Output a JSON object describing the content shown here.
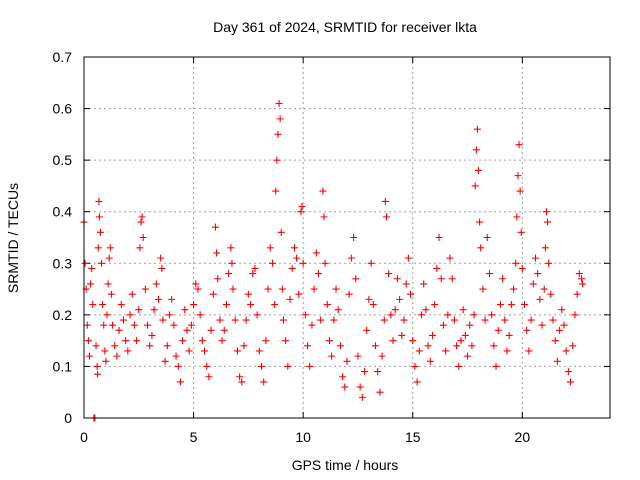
{
  "chart_data": {
    "type": "scatter",
    "title": "Day 361 of 2024, SRMTID for receiver lkta",
    "xlabel": "GPS time / hours",
    "ylabel": "SRMTID / TECUs",
    "xlim": [
      0,
      24
    ],
    "ylim": [
      0,
      0.7
    ],
    "x_ticks": [
      0,
      5,
      10,
      15,
      20
    ],
    "y_ticks": [
      0,
      0.1,
      0.2,
      0.3,
      0.4,
      0.5,
      0.6,
      0.7
    ],
    "x_tick_labels": [
      "0",
      "5",
      "10",
      "15",
      "20"
    ],
    "y_tick_labels": [
      "0",
      "0.1",
      "0.2",
      "0.3",
      "0.4",
      "0.5",
      "0.6",
      "0.7"
    ],
    "grid": true,
    "marker": "plus",
    "color": "#ff0000",
    "series": [
      {
        "name": "SRMTID",
        "points": [
          [
            0.0,
            0.38
          ],
          [
            0.05,
            0.3
          ],
          [
            0.1,
            0.25
          ],
          [
            0.15,
            0.18
          ],
          [
            0.2,
            0.15
          ],
          [
            0.25,
            0.12
          ],
          [
            0.3,
            0.26
          ],
          [
            0.35,
            0.29
          ],
          [
            0.4,
            0.22
          ],
          [
            0.45,
            0.0
          ],
          [
            0.5,
            0.0
          ],
          [
            0.55,
            0.14
          ],
          [
            0.6,
            0.1
          ],
          [
            0.62,
            0.085
          ],
          [
            0.65,
            0.33
          ],
          [
            0.68,
            0.42
          ],
          [
            0.7,
            0.39
          ],
          [
            0.75,
            0.36
          ],
          [
            0.8,
            0.3
          ],
          [
            0.85,
            0.22
          ],
          [
            0.9,
            0.18
          ],
          [
            0.95,
            0.13
          ],
          [
            1.0,
            0.11
          ],
          [
            1.05,
            0.2
          ],
          [
            1.1,
            0.26
          ],
          [
            1.15,
            0.31
          ],
          [
            1.2,
            0.33
          ],
          [
            1.25,
            0.24
          ],
          [
            1.3,
            0.18
          ],
          [
            1.4,
            0.14
          ],
          [
            1.5,
            0.12
          ],
          [
            1.6,
            0.17
          ],
          [
            1.7,
            0.22
          ],
          [
            1.8,
            0.19
          ],
          [
            1.9,
            0.15
          ],
          [
            2.0,
            0.13
          ],
          [
            2.1,
            0.2
          ],
          [
            2.2,
            0.24
          ],
          [
            2.3,
            0.18
          ],
          [
            2.4,
            0.15
          ],
          [
            2.5,
            0.21
          ],
          [
            2.55,
            0.33
          ],
          [
            2.6,
            0.38
          ],
          [
            2.65,
            0.39
          ],
          [
            2.7,
            0.35
          ],
          [
            2.8,
            0.25
          ],
          [
            2.9,
            0.18
          ],
          [
            3.0,
            0.14
          ],
          [
            3.1,
            0.16
          ],
          [
            3.2,
            0.21
          ],
          [
            3.3,
            0.26
          ],
          [
            3.4,
            0.23
          ],
          [
            3.5,
            0.31
          ],
          [
            3.55,
            0.29
          ],
          [
            3.6,
            0.19
          ],
          [
            3.7,
            0.11
          ],
          [
            3.8,
            0.14
          ],
          [
            3.9,
            0.2
          ],
          [
            4.0,
            0.23
          ],
          [
            4.1,
            0.18
          ],
          [
            4.2,
            0.12
          ],
          [
            4.3,
            0.1
          ],
          [
            4.4,
            0.07
          ],
          [
            4.5,
            0.15
          ],
          [
            4.6,
            0.21
          ],
          [
            4.7,
            0.17
          ],
          [
            4.8,
            0.13
          ],
          [
            4.9,
            0.18
          ],
          [
            5.0,
            0.22
          ],
          [
            5.1,
            0.26
          ],
          [
            5.2,
            0.25
          ],
          [
            5.3,
            0.2
          ],
          [
            5.4,
            0.15
          ],
          [
            5.5,
            0.13
          ],
          [
            5.6,
            0.1
          ],
          [
            5.7,
            0.08
          ],
          [
            5.8,
            0.17
          ],
          [
            5.9,
            0.24
          ],
          [
            6.0,
            0.37
          ],
          [
            6.05,
            0.32
          ],
          [
            6.1,
            0.27
          ],
          [
            6.2,
            0.19
          ],
          [
            6.3,
            0.15
          ],
          [
            6.4,
            0.17
          ],
          [
            6.5,
            0.22
          ],
          [
            6.6,
            0.28
          ],
          [
            6.7,
            0.33
          ],
          [
            6.75,
            0.3
          ],
          [
            6.8,
            0.25
          ],
          [
            6.9,
            0.19
          ],
          [
            7.0,
            0.13
          ],
          [
            7.1,
            0.08
          ],
          [
            7.2,
            0.07
          ],
          [
            7.3,
            0.14
          ],
          [
            7.4,
            0.19
          ],
          [
            7.5,
            0.24
          ],
          [
            7.6,
            0.22
          ],
          [
            7.7,
            0.28
          ],
          [
            7.8,
            0.29
          ],
          [
            7.9,
            0.2
          ],
          [
            8.0,
            0.13
          ],
          [
            8.1,
            0.1
          ],
          [
            8.2,
            0.07
          ],
          [
            8.3,
            0.15
          ],
          [
            8.4,
            0.25
          ],
          [
            8.5,
            0.33
          ],
          [
            8.6,
            0.3
          ],
          [
            8.7,
            0.22
          ],
          [
            8.75,
            0.44
          ],
          [
            8.8,
            0.5
          ],
          [
            8.85,
            0.55
          ],
          [
            8.9,
            0.61
          ],
          [
            8.95,
            0.58
          ],
          [
            9.0,
            0.36
          ],
          [
            9.05,
            0.25
          ],
          [
            9.1,
            0.19
          ],
          [
            9.2,
            0.15
          ],
          [
            9.3,
            0.1
          ],
          [
            9.4,
            0.23
          ],
          [
            9.5,
            0.29
          ],
          [
            9.6,
            0.33
          ],
          [
            9.7,
            0.31
          ],
          [
            9.8,
            0.24
          ],
          [
            9.9,
            0.4
          ],
          [
            9.95,
            0.41
          ],
          [
            10.0,
            0.3
          ],
          [
            10.1,
            0.2
          ],
          [
            10.2,
            0.14
          ],
          [
            10.3,
            0.1
          ],
          [
            10.4,
            0.18
          ],
          [
            10.5,
            0.25
          ],
          [
            10.6,
            0.32
          ],
          [
            10.7,
            0.28
          ],
          [
            10.8,
            0.19
          ],
          [
            10.9,
            0.44
          ],
          [
            10.95,
            0.39
          ],
          [
            11.0,
            0.3
          ],
          [
            11.1,
            0.22
          ],
          [
            11.2,
            0.15
          ],
          [
            11.3,
            0.12
          ],
          [
            11.4,
            0.19
          ],
          [
            11.5,
            0.25
          ],
          [
            11.6,
            0.21
          ],
          [
            11.7,
            0.14
          ],
          [
            11.8,
            0.08
          ],
          [
            11.9,
            0.06
          ],
          [
            12.0,
            0.11
          ],
          [
            12.1,
            0.24
          ],
          [
            12.2,
            0.31
          ],
          [
            12.3,
            0.35
          ],
          [
            12.4,
            0.27
          ],
          [
            12.5,
            0.12
          ],
          [
            12.6,
            0.06
          ],
          [
            12.7,
            0.04
          ],
          [
            12.8,
            0.09
          ],
          [
            12.9,
            0.17
          ],
          [
            13.0,
            0.23
          ],
          [
            13.1,
            0.3
          ],
          [
            13.2,
            0.22
          ],
          [
            13.3,
            0.14
          ],
          [
            13.4,
            0.09
          ],
          [
            13.5,
            0.05
          ],
          [
            13.6,
            0.12
          ],
          [
            13.7,
            0.19
          ],
          [
            13.75,
            0.42
          ],
          [
            13.8,
            0.39
          ],
          [
            13.9,
            0.28
          ],
          [
            14.0,
            0.2
          ],
          [
            14.1,
            0.15
          ],
          [
            14.2,
            0.21
          ],
          [
            14.3,
            0.27
          ],
          [
            14.4,
            0.23
          ],
          [
            14.5,
            0.16
          ],
          [
            14.6,
            0.19
          ],
          [
            14.7,
            0.26
          ],
          [
            14.8,
            0.31
          ],
          [
            14.9,
            0.24
          ],
          [
            15.0,
            0.15
          ],
          [
            15.1,
            0.1
          ],
          [
            15.2,
            0.07
          ],
          [
            15.3,
            0.13
          ],
          [
            15.4,
            0.2
          ],
          [
            15.5,
            0.26
          ],
          [
            15.6,
            0.21
          ],
          [
            15.7,
            0.14
          ],
          [
            15.8,
            0.11
          ],
          [
            15.9,
            0.16
          ],
          [
            16.0,
            0.22
          ],
          [
            16.1,
            0.29
          ],
          [
            16.2,
            0.35
          ],
          [
            16.3,
            0.27
          ],
          [
            16.4,
            0.18
          ],
          [
            16.5,
            0.13
          ],
          [
            16.6,
            0.2
          ],
          [
            16.7,
            0.31
          ],
          [
            16.8,
            0.27
          ],
          [
            16.9,
            0.19
          ],
          [
            17.0,
            0.14
          ],
          [
            17.1,
            0.1
          ],
          [
            17.2,
            0.15
          ],
          [
            17.3,
            0.21
          ],
          [
            17.4,
            0.16
          ],
          [
            17.5,
            0.12
          ],
          [
            17.6,
            0.18
          ],
          [
            17.7,
            0.14
          ],
          [
            17.8,
            0.2
          ],
          [
            17.85,
            0.45
          ],
          [
            17.9,
            0.52
          ],
          [
            17.95,
            0.56
          ],
          [
            18.0,
            0.48
          ],
          [
            18.05,
            0.38
          ],
          [
            18.1,
            0.33
          ],
          [
            18.2,
            0.25
          ],
          [
            18.3,
            0.19
          ],
          [
            18.4,
            0.35
          ],
          [
            18.5,
            0.28
          ],
          [
            18.6,
            0.2
          ],
          [
            18.7,
            0.14
          ],
          [
            18.8,
            0.1
          ],
          [
            18.9,
            0.17
          ],
          [
            19.0,
            0.22
          ],
          [
            19.1,
            0.27
          ],
          [
            19.2,
            0.19
          ],
          [
            19.3,
            0.13
          ],
          [
            19.4,
            0.16
          ],
          [
            19.5,
            0.22
          ],
          [
            19.6,
            0.25
          ],
          [
            19.7,
            0.3
          ],
          [
            19.75,
            0.39
          ],
          [
            19.8,
            0.47
          ],
          [
            19.85,
            0.53
          ],
          [
            19.9,
            0.44
          ],
          [
            19.95,
            0.36
          ],
          [
            20.0,
            0.29
          ],
          [
            20.1,
            0.22
          ],
          [
            20.2,
            0.17
          ],
          [
            20.3,
            0.13
          ],
          [
            20.4,
            0.19
          ],
          [
            20.5,
            0.26
          ],
          [
            20.6,
            0.31
          ],
          [
            20.7,
            0.28
          ],
          [
            20.8,
            0.23
          ],
          [
            20.9,
            0.18
          ],
          [
            21.0,
            0.25
          ],
          [
            21.05,
            0.33
          ],
          [
            21.1,
            0.4
          ],
          [
            21.15,
            0.38
          ],
          [
            21.2,
            0.3
          ],
          [
            21.3,
            0.24
          ],
          [
            21.4,
            0.19
          ],
          [
            21.5,
            0.15
          ],
          [
            21.6,
            0.11
          ],
          [
            21.7,
            0.17
          ],
          [
            21.8,
            0.21
          ],
          [
            21.9,
            0.18
          ],
          [
            22.0,
            0.13
          ],
          [
            22.1,
            0.09
          ],
          [
            22.2,
            0.07
          ],
          [
            22.3,
            0.14
          ],
          [
            22.4,
            0.2
          ],
          [
            22.5,
            0.24
          ],
          [
            22.6,
            0.28
          ],
          [
            22.7,
            0.27
          ],
          [
            22.75,
            0.26
          ]
        ]
      }
    ]
  }
}
